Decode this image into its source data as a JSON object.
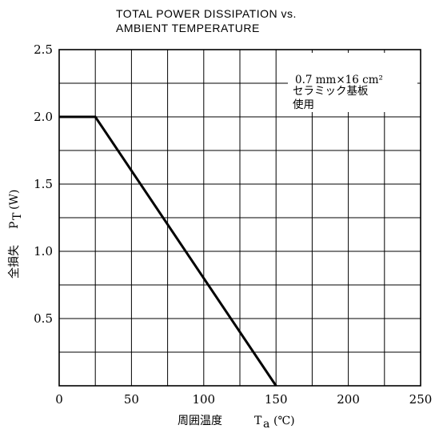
{
  "chart_data": {
    "type": "line",
    "title_lines": [
      "TOTAL POWER DISSIPATION vs.",
      "AMBIENT TEMPERATURE"
    ],
    "xlabel": {
      "text": "周囲温度",
      "symbol": "T",
      "subscript": "a",
      "unit": "(℃)"
    },
    "ylabel": {
      "text": "全損失",
      "symbol": "P",
      "subscript": "T",
      "unit": "(W)"
    },
    "xlim": [
      0,
      250
    ],
    "ylim": [
      0,
      2.5
    ],
    "x_ticks": [
      0,
      50,
      100,
      150,
      200,
      250
    ],
    "x_tick_labels": [
      "0",
      "50",
      "100",
      "150",
      "200",
      "250"
    ],
    "y_ticks": [
      0.5,
      1.0,
      1.5,
      2.0,
      2.5
    ],
    "y_tick_labels": [
      "0.5",
      "1.0",
      "1.5",
      "2.0",
      "2.5"
    ],
    "x_grid_step": 25,
    "y_grid_step": 0.25,
    "grid": true,
    "series": [
      {
        "x": [
          0,
          25,
          150
        ],
        "y": [
          2.0,
          2.0,
          0
        ]
      }
    ],
    "annotation": {
      "lines": [
        "0.7 mm×16 cm²",
        "セラミック基板",
        "使用"
      ],
      "position": "top-right"
    }
  }
}
